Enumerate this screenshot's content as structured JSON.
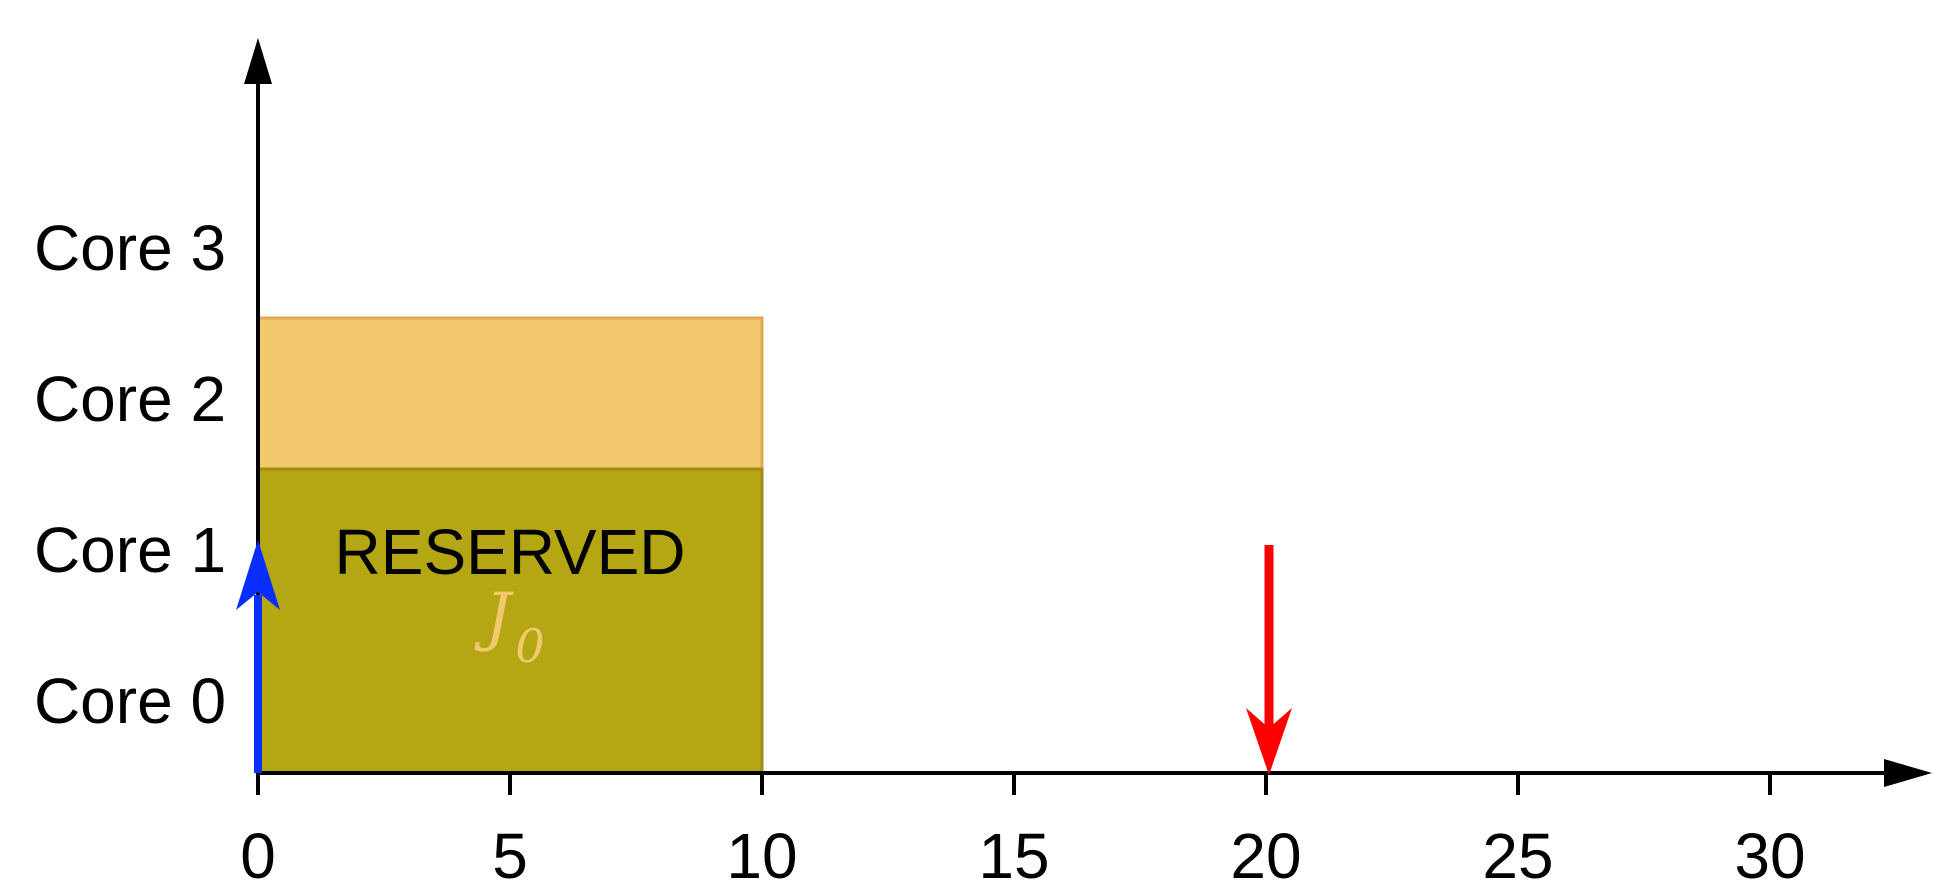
{
  "x_axis": {
    "ticks": [
      "0",
      "5",
      "10",
      "15",
      "20",
      "25",
      "30"
    ],
    "range": [
      0,
      30
    ]
  },
  "y_axis": {
    "rows": [
      "Core 0",
      "Core 1",
      "Core 2",
      "Core 3"
    ]
  },
  "blocks": [
    {
      "id": "reserved",
      "label": "RESERVED",
      "start": 0,
      "end": 10,
      "cores": [
        0,
        1
      ],
      "color": "#B5A613",
      "border": "#A58A12"
    },
    {
      "id": "j0",
      "label": "J",
      "sublabel": "0",
      "start": 0,
      "end": 10,
      "cores": [
        2
      ],
      "color": "#F3C96E",
      "border": "#E0A850",
      "label_color": "#F3C96E"
    }
  ],
  "markers": [
    {
      "id": "release-arrow",
      "at": 0,
      "direction": "up",
      "color": "#0A2EFF"
    },
    {
      "id": "deadline-arrow",
      "at": 20,
      "direction": "down",
      "color": "#FF0000"
    }
  ]
}
